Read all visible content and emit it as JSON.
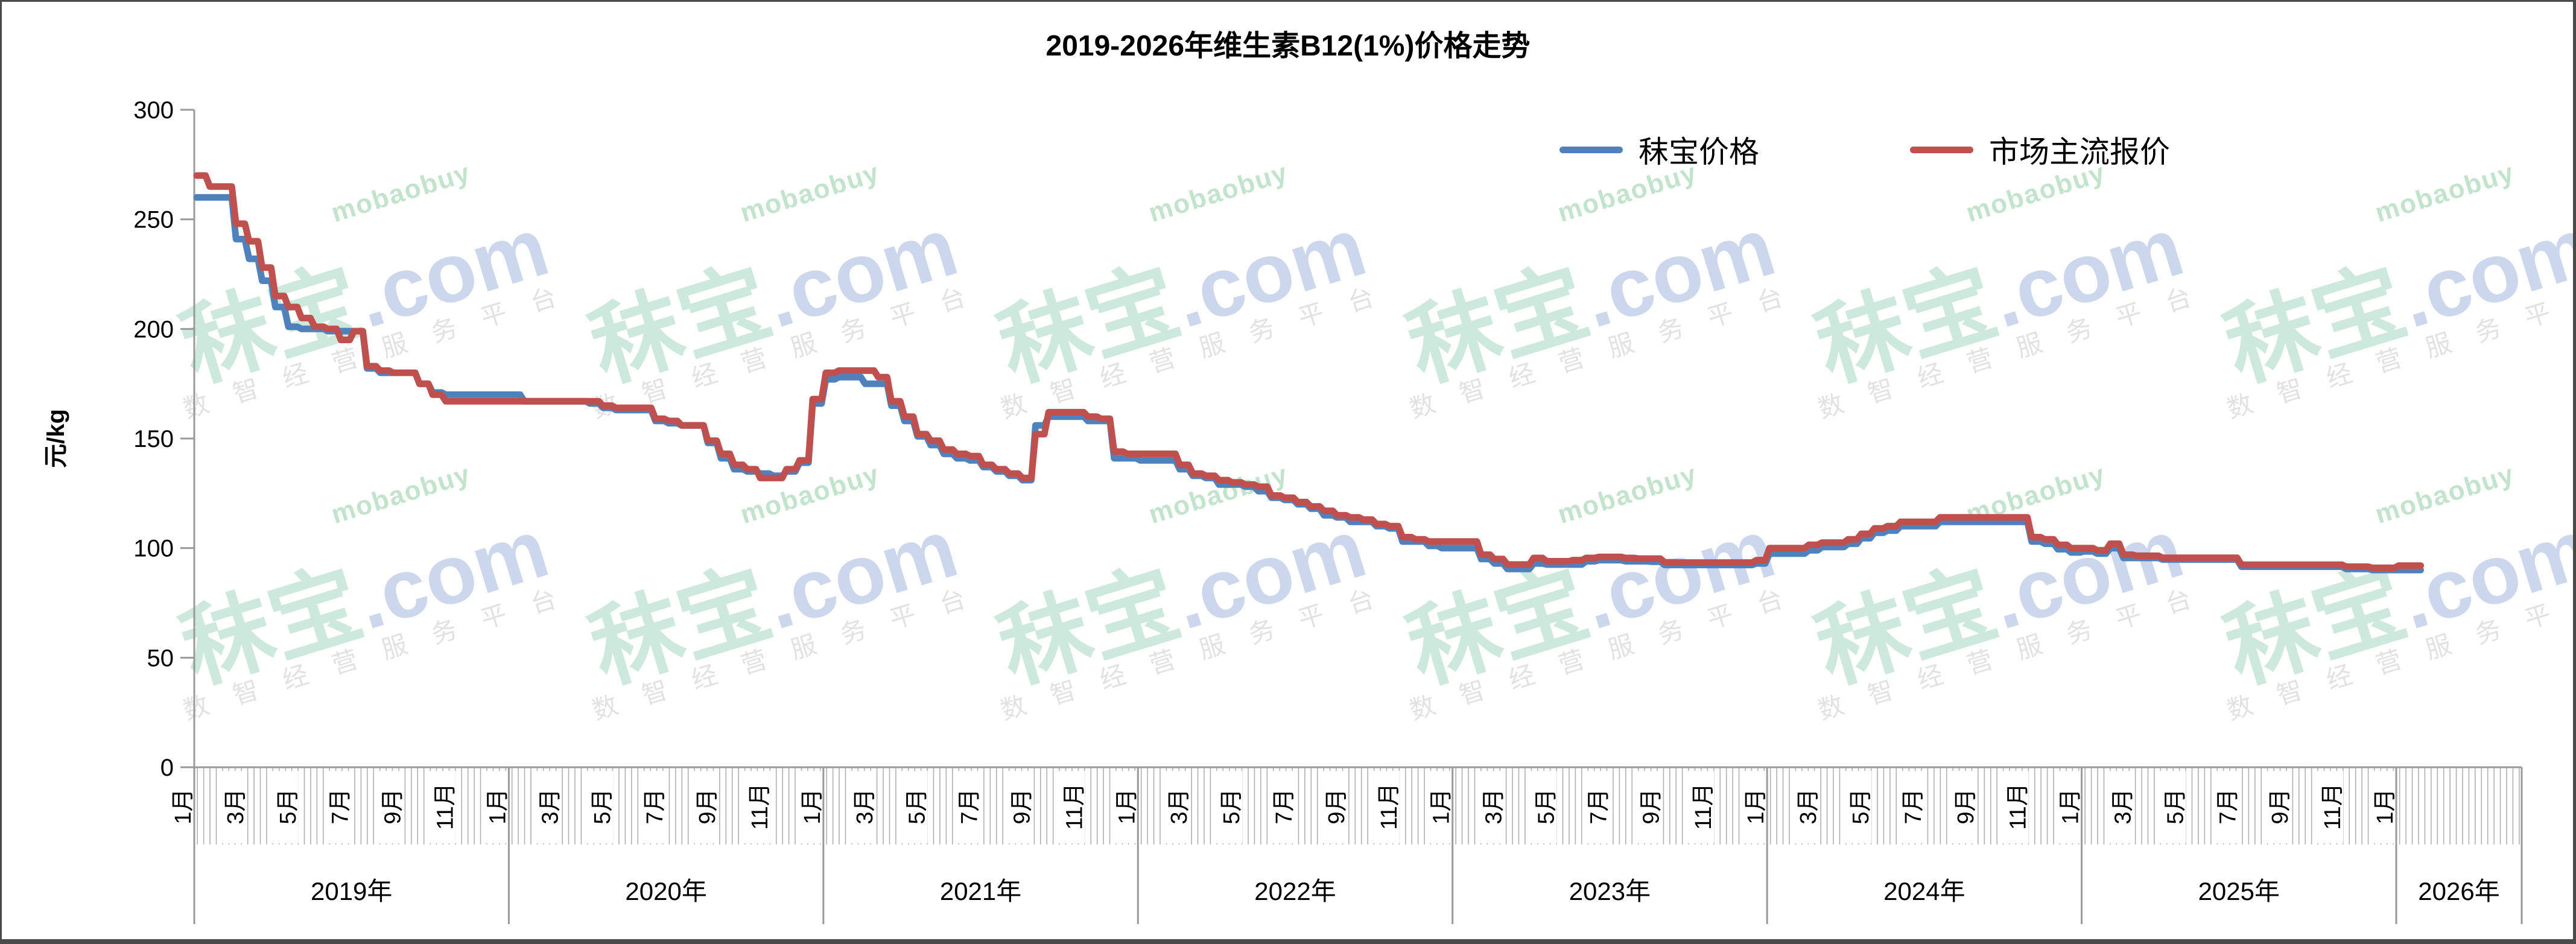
{
  "title": "2019-2026年维生素B12(1%)价格走势",
  "y_axis": {
    "unit_label": "元/kg",
    "ticks": [
      0,
      50,
      100,
      150,
      200,
      250,
      300
    ]
  },
  "x_axis": {
    "years": [
      {
        "label": "2019年",
        "months": [
          "1月",
          "3月",
          "5月",
          "7月",
          "9月",
          "11月"
        ]
      },
      {
        "label": "2020年",
        "months": [
          "1月",
          "3月",
          "5月",
          "7月",
          "9月",
          "11月"
        ]
      },
      {
        "label": "2021年",
        "months": [
          "1月",
          "3月",
          "5月",
          "7月",
          "9月",
          "11月"
        ]
      },
      {
        "label": "2022年",
        "months": [
          "1月",
          "3月",
          "5月",
          "7月",
          "9月",
          "11月"
        ]
      },
      {
        "label": "2023年",
        "months": [
          "1月",
          "3月",
          "5月",
          "7月",
          "9月",
          "11月"
        ]
      },
      {
        "label": "2024年",
        "months": [
          "1月",
          "3月",
          "5月",
          "7月",
          "9月",
          "11月"
        ]
      },
      {
        "label": "2025年",
        "months": [
          "1月",
          "3月",
          "5月",
          "7月",
          "9月",
          "11月"
        ]
      },
      {
        "label": "2026年",
        "months": [
          "1月"
        ]
      }
    ]
  },
  "watermark": {
    "brand": "秣宝",
    "dot_com": ".com",
    "latin": "mobaobuy",
    "tagline": "数智经营服务平台"
  },
  "colors": {
    "axis": "#9a9a9a",
    "week_tick": "#b0b0b0",
    "text": "#000000"
  },
  "chart_data": {
    "type": "line",
    "title": "2019-2026年维生素B12(1%)价格走势",
    "xlabel": "",
    "ylabel": "元/kg",
    "ylim": [
      0,
      300
    ],
    "x_start": "2019-01",
    "x_end": "2026-01",
    "points_per_month": 2,
    "legend_position": "top-right",
    "grid": false,
    "series": [
      {
        "name": "秣宝价格",
        "color": "#4F81BD",
        "values": [
          260,
          260,
          260,
          241,
          232,
          222,
          210,
          201,
          200,
          200,
          199,
          199,
          199,
          182,
          180,
          180,
          180,
          175,
          171,
          170,
          170,
          170,
          170,
          170,
          170,
          167,
          167,
          167,
          167,
          167,
          166,
          164,
          163,
          163,
          163,
          158,
          157,
          156,
          156,
          148,
          141,
          136,
          135,
          134,
          133,
          135,
          139,
          166,
          177,
          178,
          178,
          175,
          175,
          165,
          158,
          151,
          147,
          143,
          141,
          140,
          137,
          135,
          133,
          131,
          156,
          160,
          160,
          160,
          158,
          158,
          141,
          141,
          140,
          140,
          140,
          136,
          133,
          132,
          129,
          129,
          128,
          126,
          123,
          122,
          120,
          118,
          115,
          114,
          112,
          112,
          110,
          109,
          103,
          103,
          101,
          100,
          100,
          100,
          95,
          93,
          90.5,
          90.5,
          93,
          92.5,
          92.5,
          92.5,
          94,
          94.5,
          94.5,
          94,
          94,
          93.8,
          92.3,
          92.3,
          92.3,
          92.3,
          92.3,
          92.3,
          92.3,
          93,
          97.5,
          97.5,
          97.5,
          99,
          100.5,
          100.5,
          102,
          104.5,
          107,
          108,
          110,
          110,
          110,
          112,
          112,
          112,
          112,
          112,
          112,
          112,
          103,
          102,
          99.5,
          98,
          98.5,
          97.5,
          100,
          95.5,
          95.5,
          95.5,
          94.8,
          94.8,
          94.8,
          94.8,
          94.8,
          94.8,
          91.5,
          91.5,
          91.5,
          91.5,
          91.5,
          91.5,
          91.5,
          91.5,
          90.5,
          90.5,
          90,
          90,
          90,
          90
        ]
      },
      {
        "name": "市场主流报价",
        "color": "#C0504D",
        "values": [
          270,
          265,
          265,
          248,
          240,
          228,
          215,
          210,
          205,
          201,
          200,
          195,
          199,
          183,
          181,
          180,
          180,
          175,
          170,
          167,
          167,
          167,
          167,
          167,
          167,
          167,
          167,
          167,
          167,
          167,
          167,
          165,
          164,
          164,
          164,
          159,
          158,
          156,
          156,
          149,
          143,
          138,
          136,
          132,
          132,
          136,
          140,
          168,
          180,
          181,
          181,
          181,
          178,
          167,
          160,
          152,
          149,
          145,
          143,
          142,
          138,
          136,
          134,
          132,
          152,
          162,
          162,
          162,
          160,
          159,
          144,
          143,
          143,
          143,
          143,
          138,
          134,
          133,
          131,
          130,
          129,
          128,
          124,
          123,
          121,
          119,
          117,
          115,
          114,
          113,
          111,
          110,
          105,
          104,
          103,
          103,
          103,
          103,
          97,
          95,
          92.5,
          92.5,
          95.5,
          94,
          94,
          94.5,
          95.5,
          96,
          96,
          95.5,
          95.2,
          95.2,
          93.5,
          93.4,
          93.4,
          93.4,
          93.4,
          93.4,
          93.4,
          94.5,
          100,
          100,
          100,
          101.5,
          102.5,
          102.5,
          104,
          106.5,
          109,
          110,
          112,
          112,
          112,
          114,
          114,
          114,
          114,
          114,
          114,
          114,
          105,
          104,
          101.5,
          100,
          100,
          99,
          102,
          97,
          96.5,
          96.5,
          95.6,
          95.6,
          95.6,
          95.6,
          95.6,
          95.6,
          92.4,
          92.4,
          92.4,
          92.4,
          92.4,
          92.4,
          92.4,
          92.4,
          91.5,
          91.5,
          91,
          91,
          92,
          92
        ]
      }
    ]
  }
}
